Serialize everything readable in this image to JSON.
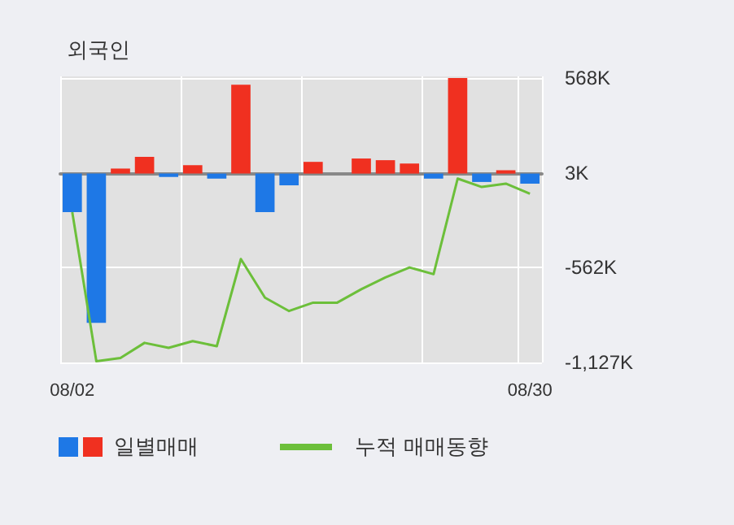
{
  "chart_data": {
    "type": "bar",
    "title": "외국인",
    "categories": [
      "08/02",
      null,
      null,
      null,
      null,
      null,
      null,
      null,
      null,
      null,
      null,
      null,
      null,
      null,
      null,
      null,
      null,
      null,
      null,
      "08/30"
    ],
    "series": [
      {
        "name": "일별매매",
        "colors": [
          "#1e78e6",
          "#1e78e6",
          "#f03020",
          "#f03020",
          "#1e78e6",
          "#f03020",
          "#1e78e6",
          "#f03020",
          "#1e78e6",
          "#1e78e6",
          "#f03020",
          "#f03020",
          "#f03020",
          "#f03020",
          "#f03020",
          "#1e78e6",
          "#f03020",
          "#1e78e6",
          "#f03020",
          "#1e78e6"
        ],
        "values": [
          -230000,
          -890000,
          30000,
          100000,
          -20000,
          50000,
          -30000,
          530000,
          -230000,
          -70000,
          70000,
          0,
          90000,
          80000,
          60000,
          -30000,
          570000,
          -50000,
          20000,
          -60000
        ]
      },
      {
        "name": "누적 매매동향",
        "type": "line",
        "color": "#6cbf3a",
        "values": [
          -230000,
          -1120000,
          -1100000,
          -1010000,
          -1040000,
          -1000000,
          -1030000,
          -510000,
          -740000,
          -820000,
          -770000,
          -770000,
          -690000,
          -620000,
          -560000,
          -600000,
          -30000,
          -80000,
          -60000,
          -120000
        ]
      }
    ],
    "ylim": [
      -1127000,
      580000
    ],
    "yticks": [
      {
        "value": 568000,
        "label": "568K"
      },
      {
        "value": 3000,
        "label": "3K"
      },
      {
        "value": -562000,
        "label": "-562K"
      },
      {
        "value": -1127000,
        "label": "-1,127K"
      }
    ],
    "grid": true,
    "legend": "bottom",
    "marker": "none",
    "line_style": "solid"
  }
}
